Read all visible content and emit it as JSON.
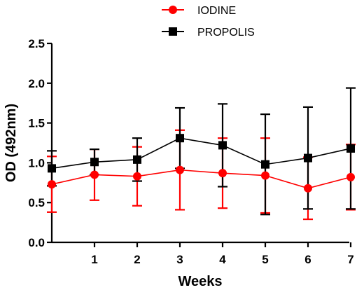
{
  "chart_data": {
    "type": "line",
    "xlabel": "Weeks",
    "ylabel": "OD (492nm)",
    "xlim": [
      0,
      7
    ],
    "ylim": [
      0,
      2.5
    ],
    "x_ticks": [
      1,
      2,
      3,
      4,
      5,
      6,
      7
    ],
    "y_ticks": [
      "0.0",
      "0.5",
      "1.0",
      "1.5",
      "2.0",
      "2.5"
    ],
    "x": [
      0,
      1,
      2,
      3,
      4,
      5,
      6,
      7
    ],
    "grid": false,
    "legend_position": "top",
    "series": [
      {
        "name": "IODINE",
        "color": "#ff0000",
        "marker": "circle",
        "values": [
          0.73,
          0.85,
          0.83,
          0.91,
          0.87,
          0.84,
          0.68,
          0.82
        ],
        "error": [
          0.35,
          0.32,
          0.37,
          0.5,
          0.44,
          0.47,
          0.39,
          0.41
        ]
      },
      {
        "name": "PROPOLIS",
        "color": "#000000",
        "marker": "square",
        "values": [
          0.93,
          1.01,
          1.04,
          1.31,
          1.22,
          0.98,
          1.06,
          1.18
        ],
        "error": [
          0.22,
          0.16,
          0.27,
          0.38,
          0.52,
          0.63,
          0.64,
          0.76
        ]
      }
    ]
  }
}
